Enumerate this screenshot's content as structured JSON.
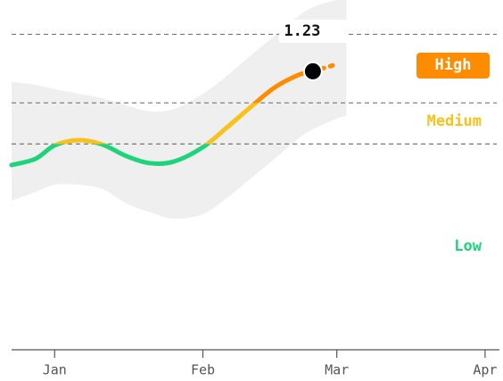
{
  "chart_data": {
    "type": "line",
    "x": [
      -9,
      -4,
      0,
      5,
      10,
      15,
      20,
      25,
      31,
      36,
      41,
      46,
      51,
      54,
      59,
      61
    ],
    "values": [
      0.547,
      0.592,
      0.69,
      0.729,
      0.696,
      0.612,
      0.56,
      0.573,
      0.677,
      0.82,
      0.97,
      1.112,
      1.204,
      1.23,
      null,
      null
    ],
    "forecast": [
      null,
      null,
      null,
      null,
      null,
      null,
      null,
      null,
      null,
      null,
      null,
      null,
      null,
      1.23,
      1.282,
      null
    ],
    "band_upper": [
      1.152,
      1.132,
      1.1,
      1.067,
      1.034,
      0.982,
      0.937,
      0.956,
      1.067,
      1.197,
      1.347,
      1.49,
      1.633,
      1.698,
      1.75,
      1.75
    ],
    "band_lower": [
      0.286,
      0.351,
      0.403,
      0.403,
      0.371,
      0.267,
      0.202,
      0.156,
      0.189,
      0.306,
      0.449,
      0.592,
      0.742,
      0.807,
      0.885,
      0.904
    ],
    "band_color": "#efefef",
    "thresholds": [
      0.7,
      1.0,
      1.5
    ],
    "levels": [
      {
        "label": "Low",
        "color": "#1ed47a"
      },
      {
        "label": "Medium",
        "color": "#f8c21c"
      },
      {
        "label": "High",
        "color": "#ff8c00"
      }
    ],
    "xlim": [
      -9,
      93
    ],
    "ylim": [
      -0.8,
      1.75
    ],
    "xticks": [
      {
        "value": 0,
        "label": "Jan"
      },
      {
        "value": 31,
        "label": "Feb"
      },
      {
        "value": 59,
        "label": "Mar"
      },
      {
        "value": 90,
        "label": "Apr"
      }
    ]
  }
}
